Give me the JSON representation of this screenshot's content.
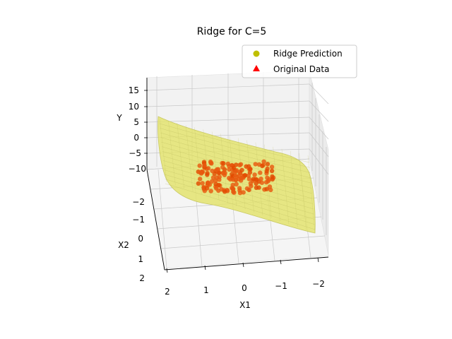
{
  "chart_data": {
    "type": "scatter",
    "title": "Ridge for C=5",
    "xlabel": "X1",
    "ylabel": "X2",
    "zlabel": "Y",
    "x_ticks": [
      "2",
      "1",
      "0",
      "−1",
      "−2"
    ],
    "y_ticks": [
      "−2",
      "−1",
      "0",
      "1",
      "2"
    ],
    "z_ticks": [
      "15",
      "10",
      "5",
      "0",
      "−5",
      "−10"
    ],
    "xlim": [
      -2.3,
      2.3
    ],
    "ylim": [
      -2.3,
      2.3
    ],
    "zlim": [
      -12,
      18
    ],
    "grid": true,
    "legend_position": "top-right",
    "legend": [
      {
        "label": "Ridge Prediction",
        "marker": "circle",
        "color": "#bfbf00"
      },
      {
        "label": "Original Data",
        "marker": "triangle",
        "color": "#ff0000"
      }
    ],
    "series": [
      {
        "name": "Ridge Prediction",
        "kind": "surface",
        "color": "#e3e36a",
        "corner_values": [
          {
            "x": -2.3,
            "y": -2.3,
            "z": 9
          },
          {
            "x": 2.3,
            "y": -2.3,
            "z": 9
          },
          {
            "x": 2.3,
            "y": 2.3,
            "z": -10
          },
          {
            "x": -2.3,
            "y": 2.3,
            "z": -5
          }
        ]
      },
      {
        "name": "Original Data",
        "kind": "points",
        "color": "#ee3300",
        "x_range": [
          -1.1,
          1.1
        ],
        "y_range": [
          -1.5,
          -0.3
        ],
        "z_range": [
          -9,
          -4
        ],
        "count": 160
      }
    ]
  }
}
